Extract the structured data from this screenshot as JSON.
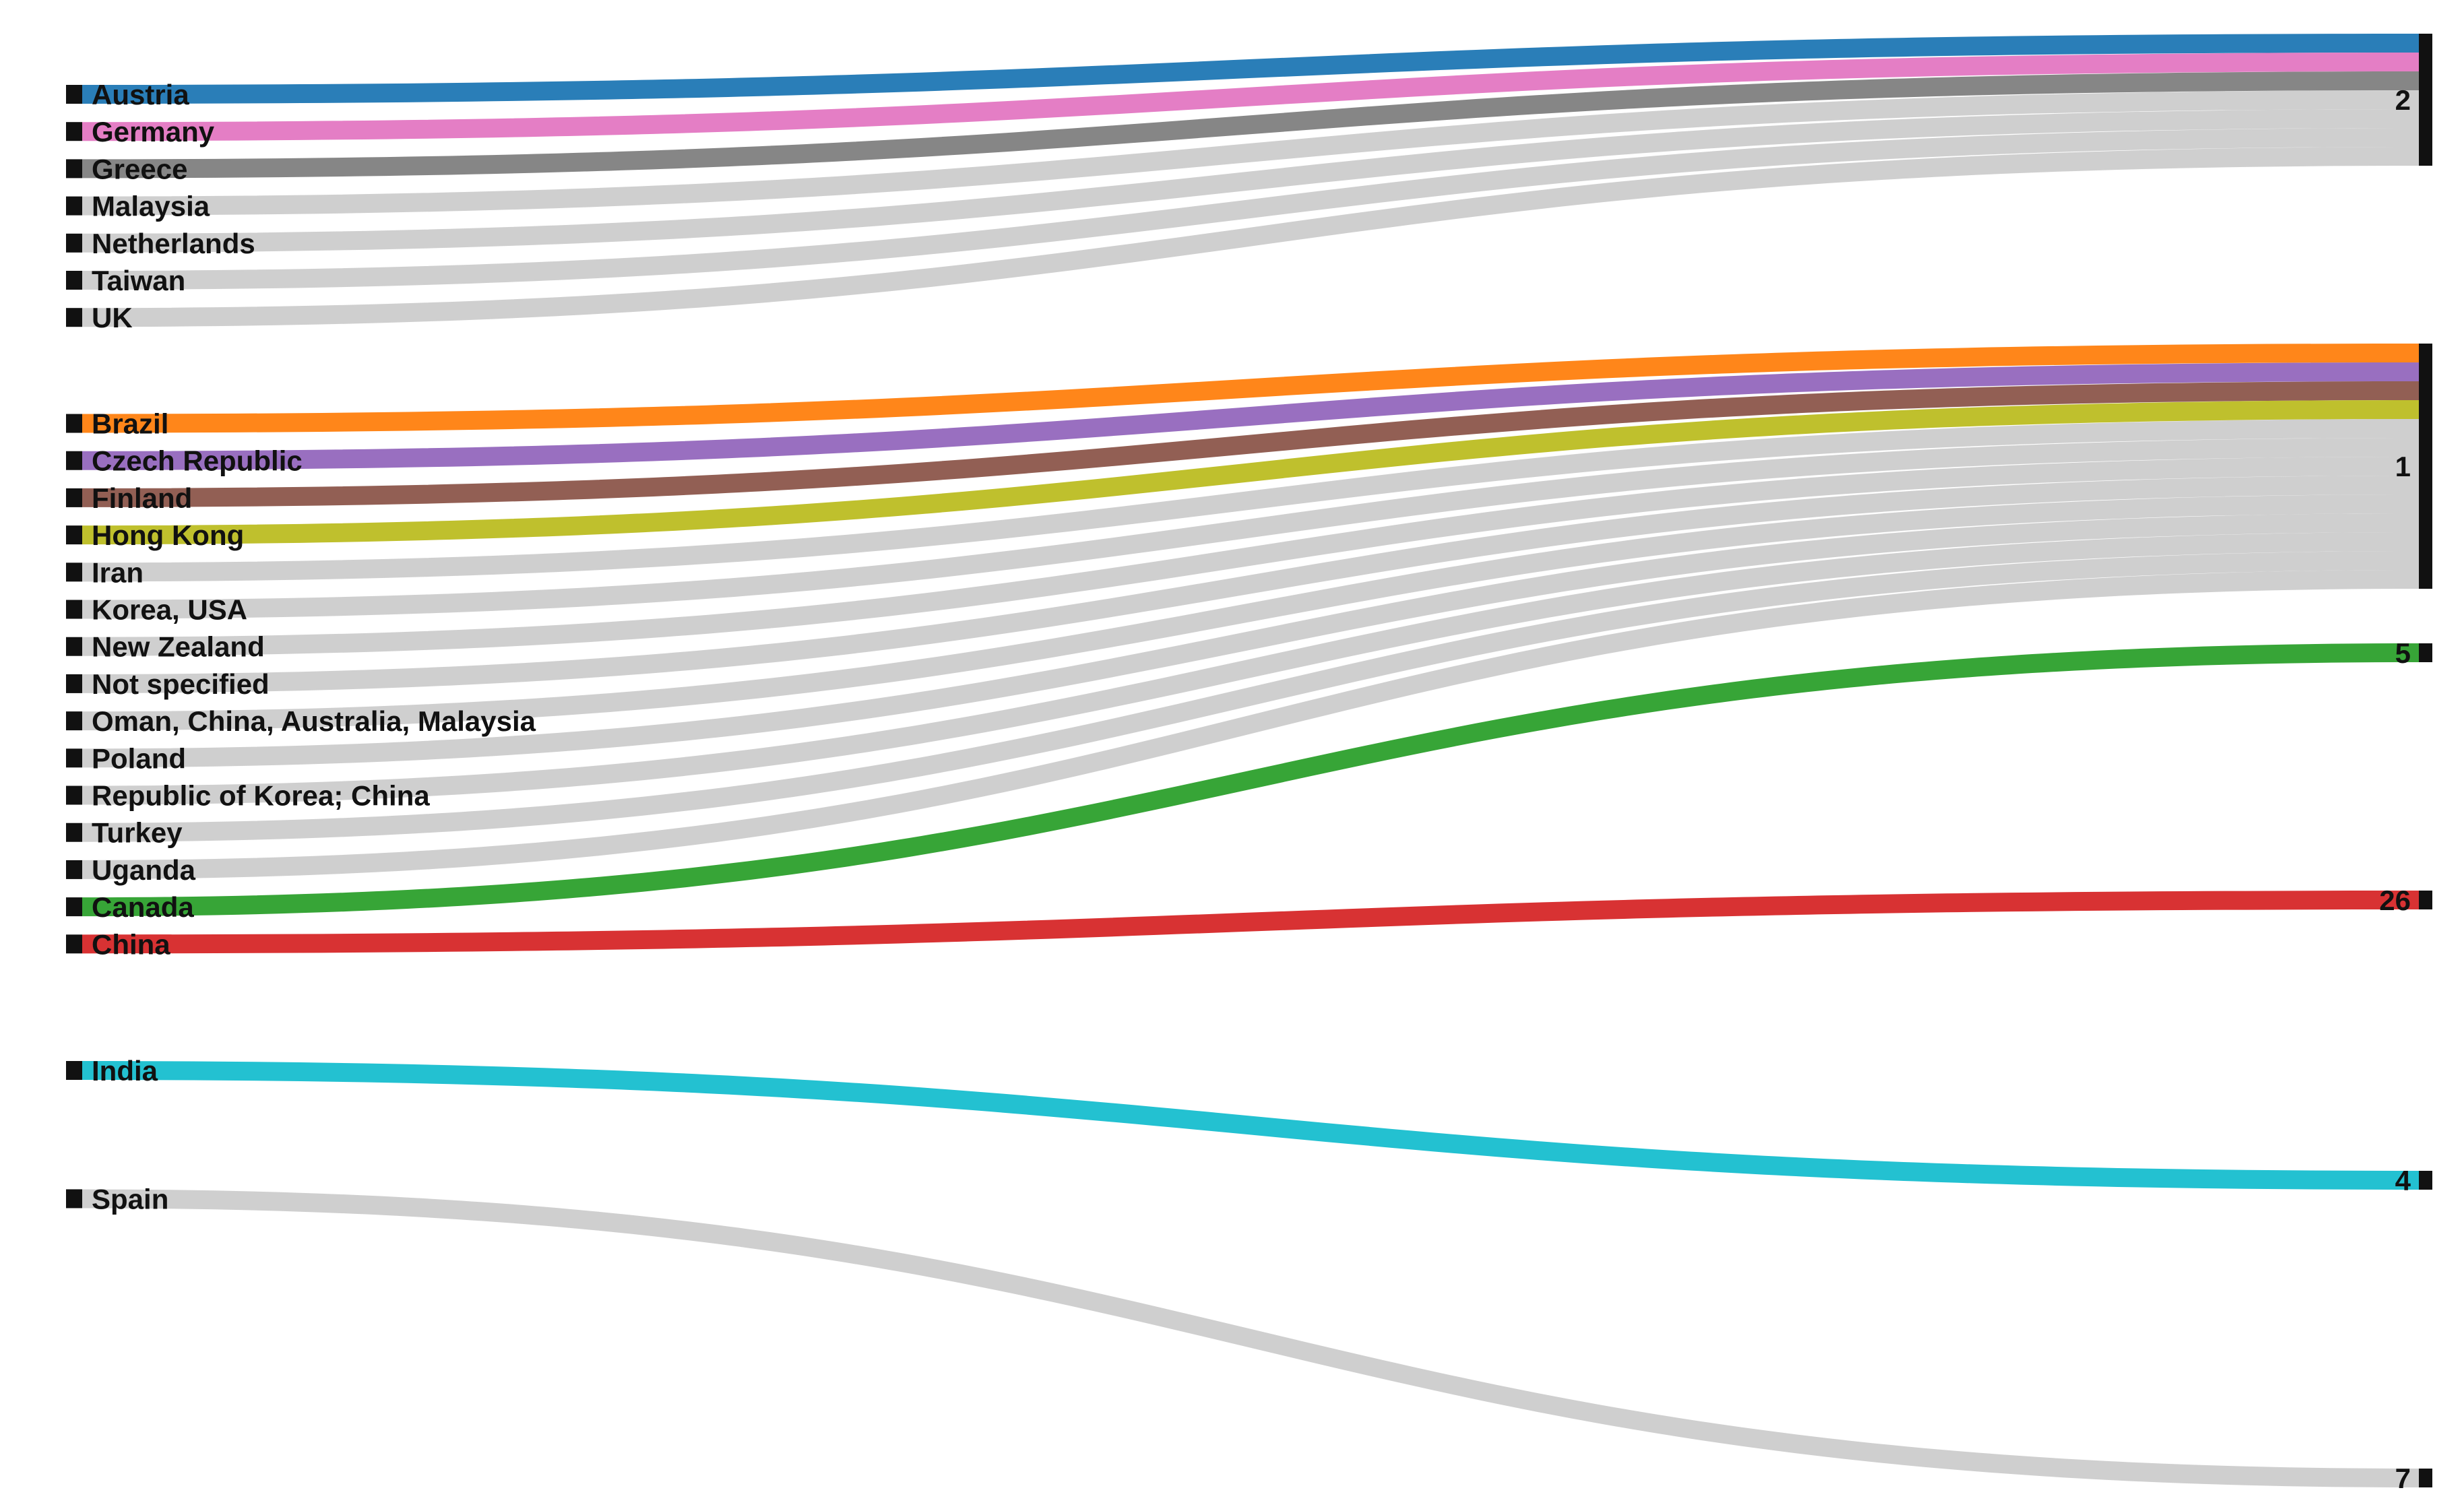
{
  "chart_data": {
    "type": "sankey",
    "sources": [
      {
        "name": "Austria",
        "target": "2",
        "color": "#1f77b4",
        "value": 1
      },
      {
        "name": "Germany",
        "target": "2",
        "color": "#e377c2",
        "value": 1
      },
      {
        "name": "Greece",
        "target": "2",
        "color": "#7f7f7f",
        "value": 1
      },
      {
        "name": "Malaysia",
        "target": "2",
        "color": "#cccccc",
        "value": 1
      },
      {
        "name": "Netherlands",
        "target": "2",
        "color": "#cccccc",
        "value": 1
      },
      {
        "name": "Taiwan",
        "target": "2",
        "color": "#cccccc",
        "value": 1
      },
      {
        "name": "UK",
        "target": "2",
        "color": "#cccccc",
        "value": 1
      },
      {
        "name": "Brazil",
        "target": "1",
        "color": "#ff7f0e",
        "value": 1
      },
      {
        "name": "Czech Republic",
        "target": "1",
        "color": "#9467bd",
        "value": 1
      },
      {
        "name": "Finland",
        "target": "1",
        "color": "#8c564b",
        "value": 1
      },
      {
        "name": "Hong Kong",
        "target": "1",
        "color": "#bcbd22",
        "value": 1
      },
      {
        "name": "Iran",
        "target": "1",
        "color": "#cccccc",
        "value": 1
      },
      {
        "name": "Korea, USA",
        "target": "1",
        "color": "#cccccc",
        "value": 1
      },
      {
        "name": "New Zealand",
        "target": "1",
        "color": "#cccccc",
        "value": 1
      },
      {
        "name": "Not specified",
        "target": "1",
        "color": "#cccccc",
        "value": 1
      },
      {
        "name": "Oman, China, Australia, Malaysia",
        "target": "1",
        "color": "#cccccc",
        "value": 1
      },
      {
        "name": "Poland",
        "target": "1",
        "color": "#cccccc",
        "value": 1
      },
      {
        "name": "Republic of Korea; China",
        "target": "1",
        "color": "#cccccc",
        "value": 1
      },
      {
        "name": "Turkey",
        "target": "1",
        "color": "#cccccc",
        "value": 1
      },
      {
        "name": "Uganda",
        "target": "1",
        "color": "#cccccc",
        "value": 1
      },
      {
        "name": "Canada",
        "target": "5",
        "color": "#2ca02c",
        "value": 1
      },
      {
        "name": "China",
        "target": "26",
        "color": "#d62728",
        "value": 1
      },
      {
        "name": "India",
        "target": "4",
        "color": "#17becf",
        "value": 1
      },
      {
        "name": "Spain",
        "target": "7",
        "color": "#cccccc",
        "value": 1
      }
    ],
    "targets": [
      {
        "name": "2"
      },
      {
        "name": "1"
      },
      {
        "name": "5"
      },
      {
        "name": "26"
      },
      {
        "name": "4"
      },
      {
        "name": "7"
      }
    ]
  }
}
